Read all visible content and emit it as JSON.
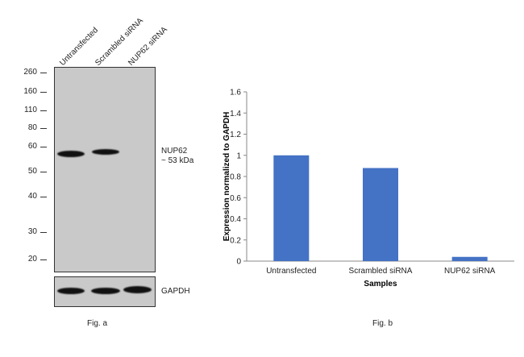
{
  "figure_a": {
    "lanes": [
      "Untransfected",
      "Scrambled siRNA",
      "NUP62 siRNA"
    ],
    "mw_markers": [
      "260",
      "160",
      "110",
      "80",
      "60",
      "50",
      "40",
      "30",
      "20"
    ],
    "target_label": "NUP62",
    "target_size": "~ 53 kDa",
    "loading_control": "GAPDH",
    "caption": "Fig. a",
    "blot_color": "#c9c9c9",
    "band_color": "#111111"
  },
  "figure_b": {
    "caption": "Fig. b"
  },
  "chart_data": {
    "type": "bar",
    "categories": [
      "Untransfected",
      "Scrambled siRNA",
      "NUP62 siRNA"
    ],
    "values": [
      1.0,
      0.88,
      0.04
    ],
    "xlabel": "Samples",
    "ylabel": "Expression normalized to GAPDH",
    "ylim": [
      0,
      1.6
    ],
    "yticks": [
      "0",
      "0.2",
      "0.4",
      "0.6",
      "0.8",
      "1",
      "1.2",
      "1.4",
      "1.6"
    ],
    "grid": false,
    "bar_color": "#4472c4"
  }
}
